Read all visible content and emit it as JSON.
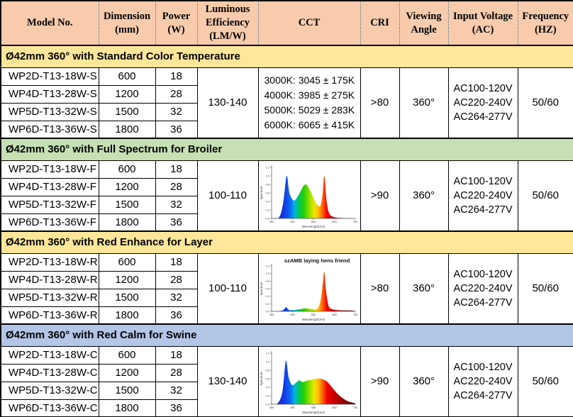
{
  "table_header_bg": "#F8CBAD",
  "headers": [
    "Model No.",
    "Dimension\n(mm)",
    "Power\n(W)",
    "Luminous\nEfficiency\n(LM/W)",
    "CCT",
    "CRI",
    "Viewing\nAngle",
    "Input Voltage\n(AC)",
    "Frequency\n(HZ)"
  ],
  "sections": [
    {
      "title": "Ø42mm 360° with Standard Color Temperature",
      "band_color": "#FFE699",
      "rows": [
        {
          "model": "WP2D-T13-18W-S",
          "dimension": "600",
          "power": "18"
        },
        {
          "model": "WP4D-T13-28W-S",
          "dimension": "1200",
          "power": "28"
        },
        {
          "model": "WP5D-T13-32W-S",
          "dimension": "1500",
          "power": "32"
        },
        {
          "model": "WP6D-T13-36W-S",
          "dimension": "1800",
          "power": "36"
        }
      ],
      "luminous_efficiency": "130-140",
      "cct_lines": [
        "3000K: 3045 ± 175K",
        "4000K: 3985 ± 275K",
        "5000K: 5029 ± 283K",
        "6000K: 6065 ± 415K"
      ],
      "cri": ">80",
      "viewing_angle": "360°",
      "voltage_lines": [
        "AC100-120V",
        "AC220-240V",
        "AC264-277V"
      ],
      "frequency": "50/60"
    },
    {
      "title": "Ø42mm 360° with Full Spectrum for Broiler",
      "band_color": "#C6E0B4",
      "rows": [
        {
          "model": "WP2D-T13-18W-F",
          "dimension": "600",
          "power": "18"
        },
        {
          "model": "WP4D-T13-28W-F",
          "dimension": "1200",
          "power": "28"
        },
        {
          "model": "WP5D-T13-32W-F",
          "dimension": "1500",
          "power": "32"
        },
        {
          "model": "WP6D-T13-36W-F",
          "dimension": "1800",
          "power": "36"
        }
      ],
      "luminous_efficiency": "100-110",
      "cri": ">90",
      "viewing_angle": "360°",
      "voltage_lines": [
        "AC100-120V",
        "AC220-240V",
        "AC264-277V"
      ],
      "frequency": "50/60"
    },
    {
      "title": "Ø42mm 360° with Red Enhance for Layer",
      "band_color": "#FFE699",
      "rows": [
        {
          "model": "WP2D-T13-18W-R",
          "dimension": "600",
          "power": "18"
        },
        {
          "model": "WP4D-T13-28W-R",
          "dimension": "1200",
          "power": "28"
        },
        {
          "model": "WP5D-T13-32W-R",
          "dimension": "1500",
          "power": "32"
        },
        {
          "model": "WP6D-T13-36W-R",
          "dimension": "1800",
          "power": "36"
        }
      ],
      "luminous_efficiency": "100-110",
      "cri": ">80",
      "viewing_angle": "360°",
      "voltage_lines": [
        "AC100-120V",
        "AC220-240V",
        "AC264-277V"
      ],
      "frequency": "50/60"
    },
    {
      "title": "Ø42mm 360° with Red Calm for Swine",
      "band_color": "#B4C6E7",
      "rows": [
        {
          "model": "WP2D-T13-18W-C",
          "dimension": "600",
          "power": "18"
        },
        {
          "model": "WP4D-T13-28W-C",
          "dimension": "1200",
          "power": "28"
        },
        {
          "model": "WP5D-T13-32W-C",
          "dimension": "1500",
          "power": "32"
        },
        {
          "model": "WP6D-T13-36W-C",
          "dimension": "1800",
          "power": "36"
        }
      ],
      "luminous_efficiency": "130-140",
      "cri": ">90",
      "viewing_angle": "360°",
      "voltage_lines": [
        "AC100-120V",
        "AC220-240V",
        "AC264-277V"
      ],
      "frequency": "50/60"
    }
  ],
  "chart_data": [
    {
      "type": "area",
      "title": "",
      "xlabel": "Wavelength(nm)",
      "ylabel": "Spectrum",
      "xlim": [
        380,
        780
      ],
      "ylim": [
        0,
        1.2
      ],
      "xticks": [
        380,
        480,
        580,
        680,
        780
      ],
      "yticks": [
        0,
        0.2,
        0.4,
        0.6,
        0.8,
        1.0,
        1.2
      ],
      "series": [
        {
          "name": "full-spectrum-broiler",
          "points": [
            [
              380,
              0
            ],
            [
              415,
              0.02
            ],
            [
              435,
              0.35
            ],
            [
              452,
              1.0
            ],
            [
              465,
              0.6
            ],
            [
              487,
              0.42
            ],
            [
              510,
              0.56
            ],
            [
              540,
              0.8
            ],
            [
              565,
              0.65
            ],
            [
              590,
              0.38
            ],
            [
              610,
              0.28
            ],
            [
              622,
              0.5
            ],
            [
              632,
              1.0
            ],
            [
              642,
              0.45
            ],
            [
              655,
              0.12
            ],
            [
              680,
              0.03
            ],
            [
              720,
              0.01
            ],
            [
              780,
              0
            ]
          ]
        }
      ]
    },
    {
      "type": "area",
      "title": "szAMB laying hens friend",
      "xlabel": "Wavelength(nm)",
      "ylabel": "Spectrum",
      "xlim": [
        380,
        780
      ],
      "ylim": [
        0,
        1.2
      ],
      "xticks": [
        380,
        480,
        580,
        680,
        780
      ],
      "yticks": [
        0,
        0.2,
        0.4,
        0.6,
        0.8,
        1.0,
        1.2
      ],
      "series": [
        {
          "name": "red-enhance-layer",
          "points": [
            [
              380,
              0
            ],
            [
              420,
              0.01
            ],
            [
              437,
              0.04
            ],
            [
              450,
              0.11
            ],
            [
              462,
              0.04
            ],
            [
              480,
              0.03
            ],
            [
              510,
              0.05
            ],
            [
              540,
              0.08
            ],
            [
              560,
              0.07
            ],
            [
              580,
              0.06
            ],
            [
              600,
              0.08
            ],
            [
              615,
              0.3
            ],
            [
              626,
              0.8
            ],
            [
              632,
              1.05
            ],
            [
              640,
              0.55
            ],
            [
              652,
              0.15
            ],
            [
              668,
              0.06
            ],
            [
              700,
              0.03
            ],
            [
              760,
              0.02
            ],
            [
              780,
              0.01
            ]
          ]
        }
      ]
    },
    {
      "type": "area",
      "title": "",
      "xlabel": "Wavelength(nm)",
      "ylabel": "Spectrum",
      "xlim": [
        380,
        780
      ],
      "ylim": [
        0,
        1.2
      ],
      "xticks": [
        380,
        480,
        580,
        680,
        780
      ],
      "yticks": [
        0,
        0.2,
        0.4,
        0.6,
        0.8,
        1.0,
        1.2
      ],
      "series": [
        {
          "name": "red-calm-swine",
          "points": [
            [
              380,
              0
            ],
            [
              410,
              0.03
            ],
            [
              432,
              0.3
            ],
            [
              448,
              1.02
            ],
            [
              462,
              0.62
            ],
            [
              478,
              0.45
            ],
            [
              495,
              0.5
            ],
            [
              512,
              0.56
            ],
            [
              528,
              0.52
            ],
            [
              545,
              0.55
            ],
            [
              565,
              0.57
            ],
            [
              590,
              0.6
            ],
            [
              615,
              0.6
            ],
            [
              640,
              0.55
            ],
            [
              660,
              0.45
            ],
            [
              685,
              0.3
            ],
            [
              710,
              0.18
            ],
            [
              740,
              0.08
            ],
            [
              765,
              0.04
            ],
            [
              780,
              0.02
            ]
          ]
        }
      ]
    }
  ]
}
